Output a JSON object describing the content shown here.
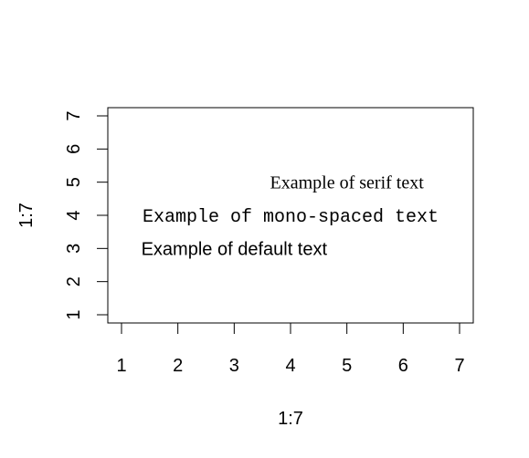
{
  "chart_data": {
    "type": "scatter",
    "title": "",
    "xlabel": "1:7",
    "ylabel": "1:7",
    "xlim": [
      1,
      7
    ],
    "ylim": [
      1,
      7
    ],
    "x_ticks": [
      1,
      2,
      3,
      4,
      5,
      6,
      7
    ],
    "y_ticks": [
      1,
      2,
      3,
      4,
      5,
      6,
      7
    ],
    "grid": false,
    "legend": "none",
    "annotations": [
      {
        "text": "Example of default text",
        "x": 3,
        "y": 3,
        "font": "sans"
      },
      {
        "text": "Example of mono-spaced text",
        "x": 4,
        "y": 4,
        "font": "mono"
      },
      {
        "text": "Example of serif text",
        "x": 5,
        "y": 5,
        "font": "serif"
      }
    ]
  }
}
